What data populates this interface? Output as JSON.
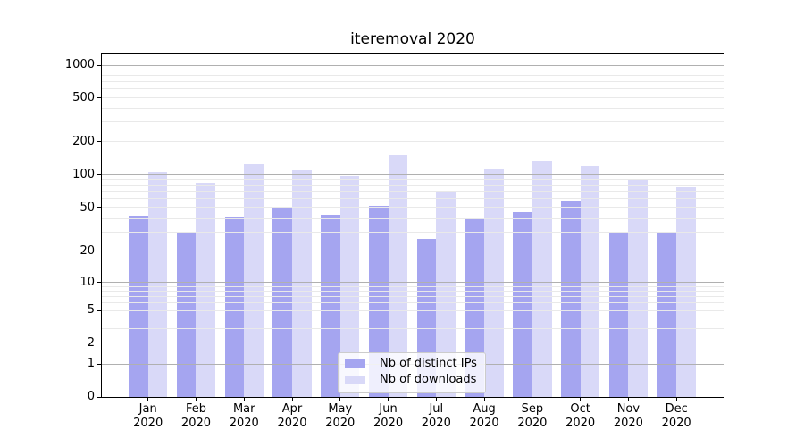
{
  "chart_data": {
    "type": "bar",
    "title": "iteremoval 2020",
    "categories": [
      "Jan",
      "Feb",
      "Mar",
      "Apr",
      "May",
      "Jun",
      "Jul",
      "Aug",
      "Sep",
      "Oct",
      "Nov",
      "Dec"
    ],
    "category_year": "2020",
    "series": [
      {
        "name": "Nb of distinct IPs",
        "color": "#a5a5f0",
        "values": [
          42,
          30,
          41,
          50,
          43,
          51,
          26,
          39,
          45,
          58,
          30,
          30
        ]
      },
      {
        "name": "Nb of downloads",
        "color": "#d9d9f8",
        "values": [
          104,
          83,
          123,
          108,
          98,
          150,
          69,
          112,
          130,
          119,
          89,
          76
        ]
      }
    ],
    "yscale": "symlog",
    "y_ticks": [
      0,
      1,
      2,
      5,
      10,
      20,
      50,
      100,
      200,
      500,
      1000
    ],
    "y_major_ticks": [
      1,
      10,
      100,
      1000
    ],
    "ylim": [
      0,
      1280
    ],
    "grid": true,
    "legend_position": "lower center",
    "colors": {
      "major_grid": "#b0b0b0",
      "minor_grid": "#e9e9e9",
      "spine": "#000000",
      "background": "#ffffff"
    }
  }
}
